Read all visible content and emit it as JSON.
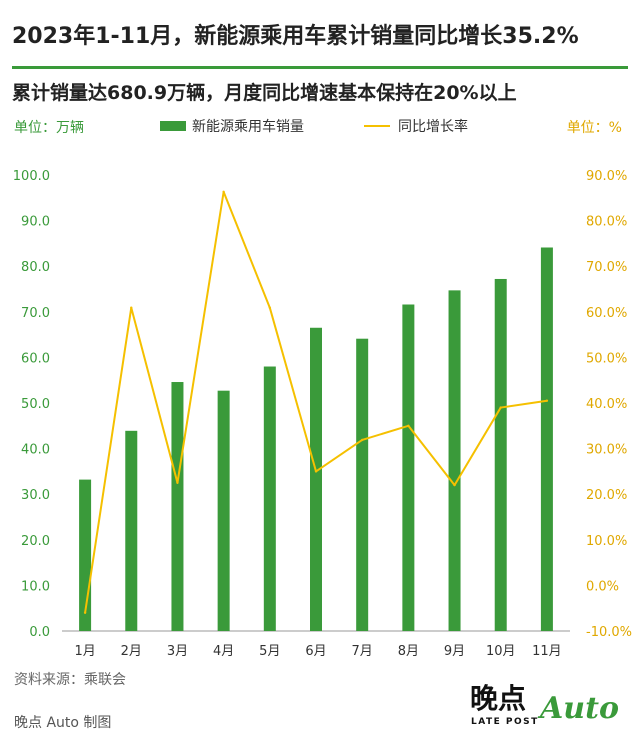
{
  "title": "2023年1-11月，新能源乘用车累计销量同比增长35.2%",
  "subtitle": "累计销量达680.9万辆，月度同比增速基本保持在20%以上",
  "unit_left": "单位：万辆",
  "unit_right": "单位：%",
  "source": "资料来源：乘联会",
  "credit": "晚点 Auto 制图",
  "logo": {
    "text": "晚点",
    "sub": "LATE POST",
    "auto": "Auto"
  },
  "colors": {
    "bar": "#3a9a3a",
    "line": "#f5c000",
    "left_axis": "#3a9a3a",
    "right_axis": "#e0a800"
  },
  "chart_data": {
    "type": "bar",
    "categories": [
      "1月",
      "2月",
      "3月",
      "4月",
      "5月",
      "6月",
      "7月",
      "8月",
      "9月",
      "10月",
      "11月"
    ],
    "series": [
      {
        "name": "新能源乘用车销量",
        "type": "bar",
        "axis": "left",
        "values": [
          33.2,
          43.9,
          54.6,
          52.7,
          58.0,
          66.5,
          64.1,
          71.6,
          74.7,
          77.2,
          84.1
        ]
      },
      {
        "name": "同比增长率",
        "type": "line",
        "axis": "right",
        "values": [
          -6.0,
          60.9,
          22.5,
          86.3,
          60.9,
          25.0,
          31.9,
          35.0,
          22.0,
          39.0,
          40.5
        ]
      }
    ],
    "y_left": {
      "range": [
        0,
        100
      ],
      "ticks": [
        "0.0",
        "10.0",
        "20.0",
        "30.0",
        "40.0",
        "50.0",
        "60.0",
        "70.0",
        "80.0",
        "90.0",
        "100.0"
      ]
    },
    "y_right": {
      "range": [
        -10,
        90
      ],
      "ticks": [
        "-10.0%",
        "0.0%",
        "10.0%",
        "20.0%",
        "30.0%",
        "40.0%",
        "50.0%",
        "60.0%",
        "70.0%",
        "80.0%",
        "90.0%"
      ]
    },
    "grid": false,
    "legend": "top"
  }
}
